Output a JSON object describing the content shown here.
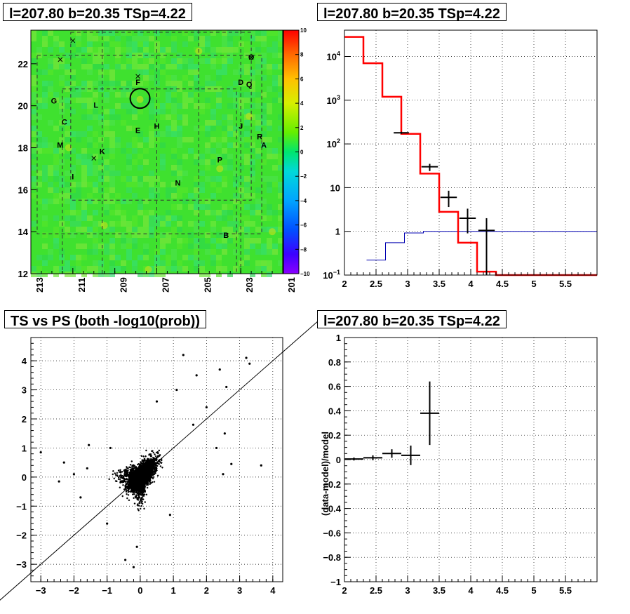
{
  "chart_data": [
    {
      "type": "heatmap",
      "title": "l=207.80 b=20.35 TSp=4.22",
      "xlim": [
        213,
        201
      ],
      "ylim": [
        12,
        23.6
      ],
      "x_ticks": [
        "213",
        "211",
        "209",
        "207",
        "205",
        "203",
        "201"
      ],
      "y_ticks": [
        "12",
        "14",
        "16",
        "18",
        "20",
        "22"
      ],
      "colorbar": {
        "min": -10,
        "max": 10,
        "ticks": [
          "10",
          "8",
          "6",
          "4",
          "2",
          "0",
          "−2",
          "−4",
          "−6",
          "−8",
          "−10"
        ]
      },
      "dominant_value": 0,
      "source_circle": {
        "x": 207.8,
        "y": 20.35
      },
      "labels": [
        {
          "text": "O",
          "x": 202.5,
          "y": 22.2
        },
        {
          "text": "D",
          "x": 203.0,
          "y": 21.0
        },
        {
          "text": "Q",
          "x": 202.6,
          "y": 20.9
        },
        {
          "text": "F",
          "x": 207.9,
          "y": 21.0
        },
        {
          "text": "G",
          "x": 211.9,
          "y": 20.1
        },
        {
          "text": "L",
          "x": 209.9,
          "y": 19.9
        },
        {
          "text": "C",
          "x": 211.4,
          "y": 19.1
        },
        {
          "text": "J",
          "x": 203.0,
          "y": 18.9
        },
        {
          "text": "E",
          "x": 207.9,
          "y": 18.7
        },
        {
          "text": "H",
          "x": 207.0,
          "y": 18.9
        },
        {
          "text": "R",
          "x": 202.1,
          "y": 18.4
        },
        {
          "text": "M",
          "x": 211.6,
          "y": 18.0
        },
        {
          "text": "A",
          "x": 201.9,
          "y": 18.0
        },
        {
          "text": "K",
          "x": 209.6,
          "y": 17.7
        },
        {
          "text": "P",
          "x": 204.0,
          "y": 17.3
        },
        {
          "text": "I",
          "x": 211.0,
          "y": 16.5
        },
        {
          "text": "N",
          "x": 206.0,
          "y": 16.2
        },
        {
          "text": "B",
          "x": 203.7,
          "y": 13.7
        }
      ],
      "crosses": [
        {
          "x": 211.0,
          "y": 23.1
        },
        {
          "x": 211.6,
          "y": 22.2
        },
        {
          "x": 207.9,
          "y": 21.4
        },
        {
          "x": 210.0,
          "y": 17.5
        },
        {
          "x": 202.5,
          "y": 22.3
        }
      ]
    },
    {
      "type": "histogram",
      "title": "l=207.80 b=20.35 TSp=4.22",
      "xlim": [
        2,
        6
      ],
      "ylim": [
        0.1,
        40000
      ],
      "log_y": true,
      "x_ticks": [
        "2",
        "2.5",
        "3",
        "3.5",
        "4",
        "4.5",
        "5",
        "5.5"
      ],
      "y_ticks": [
        {
          "value": 0.1,
          "base": "10",
          "exp": "−1"
        },
        {
          "value": 1,
          "base": "1",
          "exp": ""
        },
        {
          "value": 10,
          "base": "10",
          "exp": ""
        },
        {
          "value": 100,
          "base": "10",
          "exp": "2"
        },
        {
          "value": 1000,
          "base": "10",
          "exp": "3"
        },
        {
          "value": 10000,
          "base": "10",
          "exp": "4"
        }
      ],
      "red_model": {
        "edges": [
          2,
          2.3,
          2.6,
          2.9,
          3.2,
          3.5,
          3.8,
          4.1,
          4.4,
          6
        ],
        "values": [
          28000,
          7000,
          1200,
          170,
          21,
          2.8,
          0.55,
          0.12,
          0.1
        ]
      },
      "blue_model": {
        "edges": [
          2.35,
          2.65,
          2.95,
          3.25,
          3.55,
          3.85,
          4.15,
          6
        ],
        "values": [
          0.22,
          0.55,
          0.92,
          1.0,
          1.0,
          1.0,
          1.0
        ]
      },
      "data_points": [
        {
          "x": 2.9,
          "y": 180,
          "xerr": 0.12,
          "ylo": 170,
          "yhi": 190
        },
        {
          "x": 3.35,
          "y": 30,
          "xerr": 0.13,
          "ylo": 24,
          "yhi": 35
        },
        {
          "x": 3.65,
          "y": 6,
          "xerr": 0.13,
          "ylo": 3.6,
          "yhi": 8.5
        },
        {
          "x": 3.95,
          "y": 2.0,
          "xerr": 0.13,
          "ylo": 0.9,
          "yhi": 3.3
        },
        {
          "x": 4.25,
          "y": 1.05,
          "xerr": 0.13,
          "ylo": 0.1,
          "yhi": 2.0
        }
      ]
    },
    {
      "type": "scatter",
      "title": "TS vs PS (both -log10(prob))",
      "xlim": [
        -3.3,
        4.3
      ],
      "ylim": [
        -3.6,
        4.8
      ],
      "x_ticks": [
        "−3",
        "−2",
        "−1",
        "0",
        "1",
        "2",
        "3",
        "4"
      ],
      "y_ticks": [
        "−3",
        "−2",
        "−1",
        "0",
        "1",
        "2",
        "3",
        "4"
      ],
      "diagonal_line": {
        "slope": 1,
        "intercept": 0
      },
      "outliers": [
        {
          "x": 3.2,
          "y": 4.1
        },
        {
          "x": 2.4,
          "y": 3.7
        },
        {
          "x": 1.3,
          "y": 4.2
        },
        {
          "x": -3.0,
          "y": 0.85
        },
        {
          "x": -2.0,
          "y": 0.1
        },
        {
          "x": -2.45,
          "y": -0.15
        },
        {
          "x": 3.65,
          "y": 0.4
        },
        {
          "x": 2.75,
          "y": 0.45
        },
        {
          "x": 2.6,
          "y": 3.1
        },
        {
          "x": 1.1,
          "y": 3.0
        },
        {
          "x": -0.2,
          "y": -3.1
        },
        {
          "x": -0.45,
          "y": -2.85
        },
        {
          "x": -1.55,
          "y": 1.1
        },
        {
          "x": 2.55,
          "y": 1.5
        },
        {
          "x": -1.0,
          "y": -1.6
        },
        {
          "x": -0.1,
          "y": -2.4
        },
        {
          "x": 0.5,
          "y": 2.6
        },
        {
          "x": 1.7,
          "y": 3.5
        },
        {
          "x": -1.6,
          "y": 0.3
        },
        {
          "x": 2.0,
          "y": 2.4
        },
        {
          "x": 3.3,
          "y": 3.9
        },
        {
          "x": -2.3,
          "y": 0.5
        },
        {
          "x": -1.8,
          "y": -0.7
        },
        {
          "x": 0.9,
          "y": -1.3
        },
        {
          "x": 2.3,
          "y": 1.0
        },
        {
          "x": 1.6,
          "y": 1.8
        },
        {
          "x": -0.9,
          "y": 1.0
        },
        {
          "x": 2.5,
          "y": 0.1
        }
      ]
    },
    {
      "type": "scatter",
      "title": "l=207.80 b=20.35 TSp=4.22",
      "ylabel": "(data-model)/model",
      "xlim": [
        2,
        6
      ],
      "ylim": [
        -1,
        1
      ],
      "x_ticks": [
        "2",
        "2.5",
        "3",
        "3.5",
        "4",
        "4.5",
        "5",
        "5.5"
      ],
      "y_ticks": [
        "1",
        "0.8",
        "0.6",
        "0.4",
        "0.2",
        "0",
        "−0.2",
        "−0.4",
        "−0.6",
        "−0.8",
        "−1"
      ],
      "points": [
        {
          "x": 2.15,
          "y": 0.005,
          "xerr": 0.15,
          "yerr": 0.012
        },
        {
          "x": 2.45,
          "y": 0.015,
          "xerr": 0.15,
          "yerr": 0.02
        },
        {
          "x": 2.75,
          "y": 0.05,
          "xerr": 0.15,
          "yerr": 0.035
        },
        {
          "x": 3.05,
          "y": 0.035,
          "xerr": 0.15,
          "yerr": 0.08
        },
        {
          "x": 3.35,
          "y": 0.38,
          "xerr": 0.15,
          "yerr": 0.26
        }
      ]
    }
  ]
}
